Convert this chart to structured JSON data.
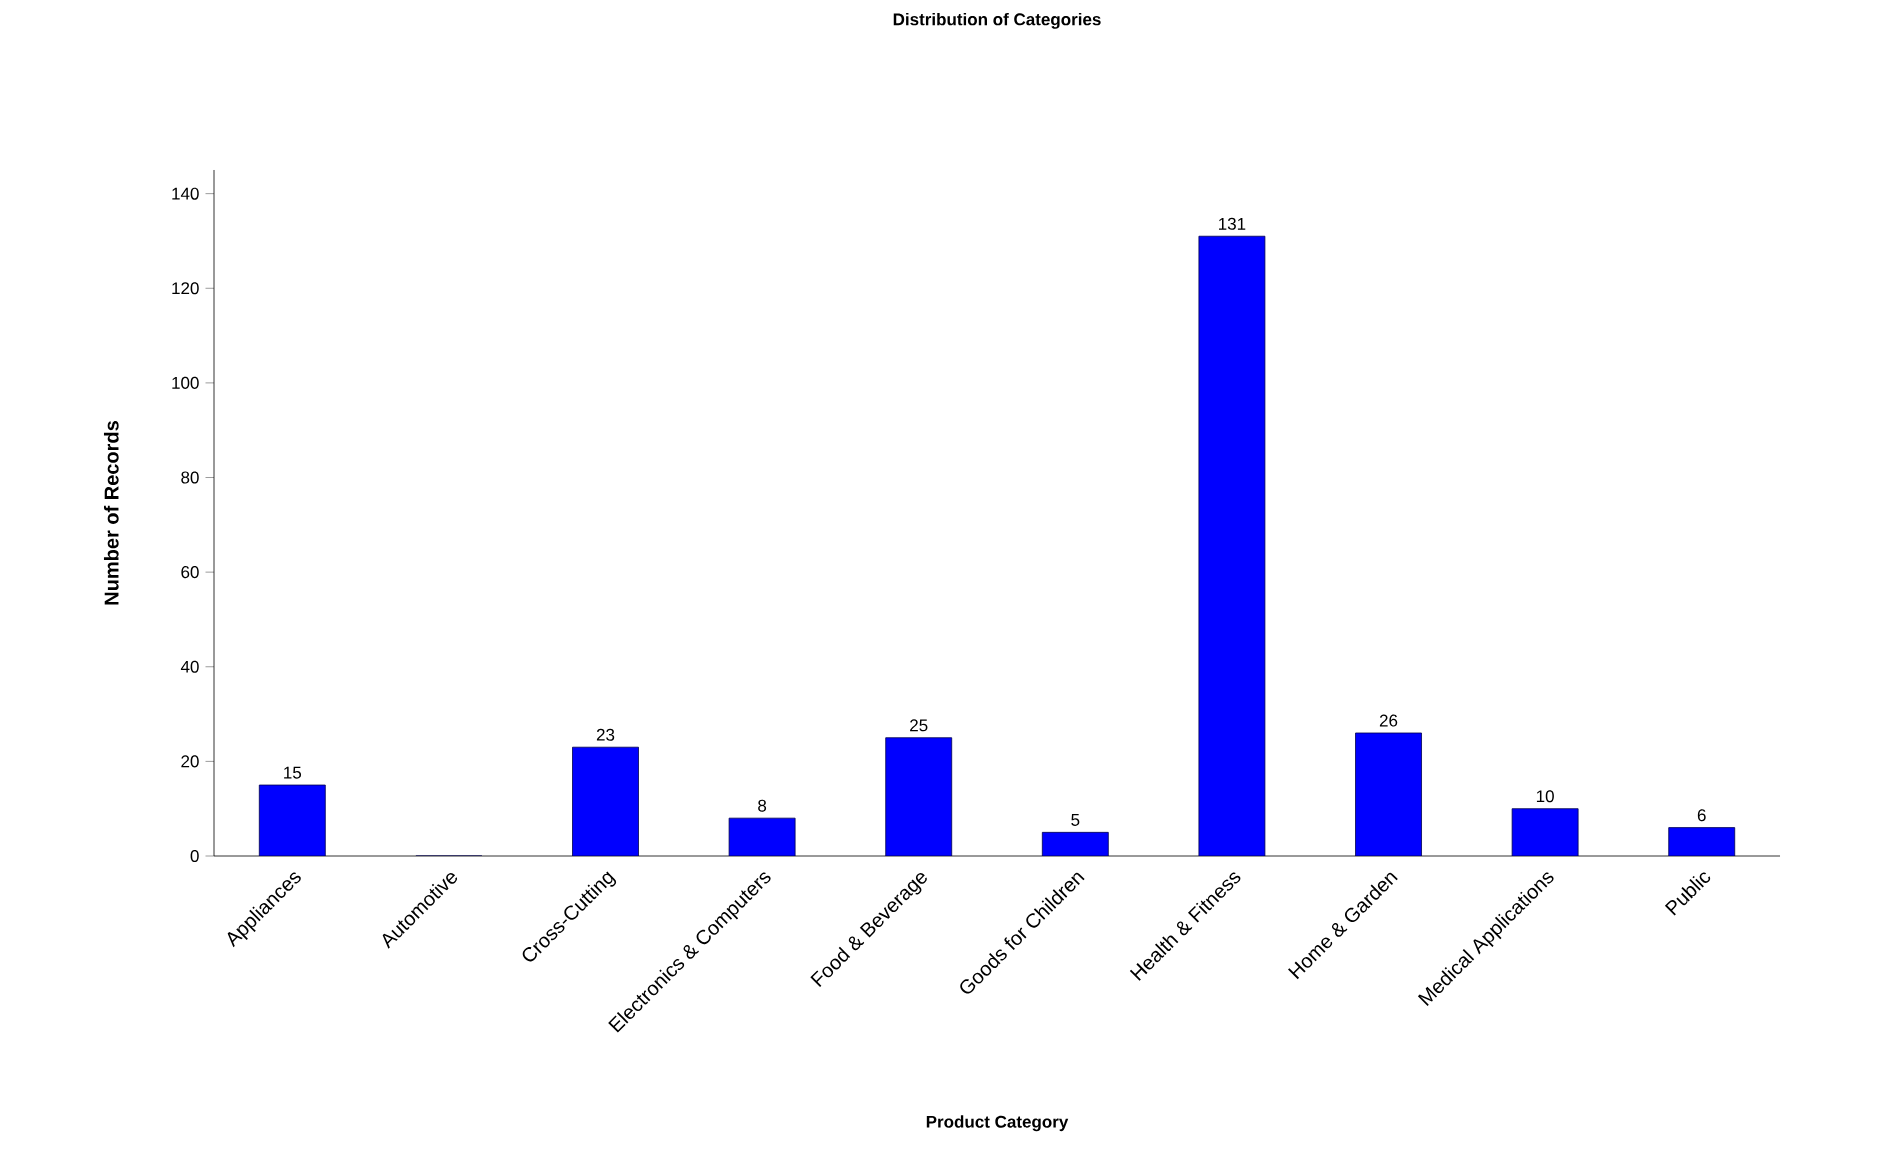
{
  "chart_data": {
    "type": "bar",
    "title": "Distribution of Categories",
    "xlabel": "Product Category",
    "ylabel": "Number of Records",
    "categories": [
      "Appliances",
      "Automotive",
      "Cross-Cutting",
      "Electronics & Computers",
      "Food & Beverage",
      "Goods for Children",
      "Health & Fitness",
      "Home & Garden",
      "Medical Applications",
      "Public"
    ],
    "values": [
      15,
      0,
      23,
      8,
      25,
      5,
      131,
      26,
      10,
      6
    ],
    "value_labels": [
      "15",
      null,
      "23",
      "8",
      "25",
      "5",
      "131",
      "26",
      "10",
      "6"
    ],
    "color": "#0000ff",
    "ylim": [
      0,
      145
    ],
    "yticks": [
      0,
      20,
      40,
      60,
      80,
      100,
      120,
      140
    ],
    "grid": false
  }
}
